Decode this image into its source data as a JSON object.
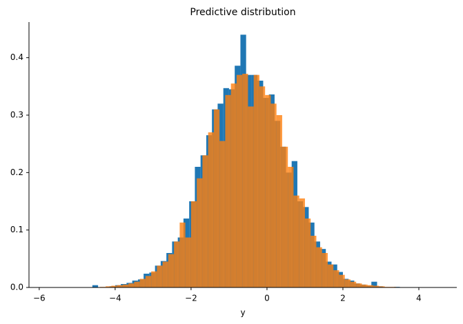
{
  "chart_data": {
    "type": "histogram",
    "title": "Predictive distribution",
    "x_label": "y",
    "xlim": [
      -6.27,
      5.0
    ],
    "ylim": [
      0,
      0.462
    ],
    "xticks": [
      {
        "value": -6,
        "label": "−6"
      },
      {
        "value": -4,
        "label": "−4"
      },
      {
        "value": -2,
        "label": "−2"
      },
      0,
      2,
      4
    ],
    "yticks": [
      {
        "value": 0,
        "label": "0.0"
      },
      0.1,
      0.2,
      0.3,
      0.4
    ],
    "series": [
      {
        "color": "#1f77b4",
        "opacity": 1,
        "bins": [
          -4.6,
          -4.45,
          -4.3,
          -4.15,
          -4.0,
          -3.85,
          -3.7,
          -3.55,
          -3.4,
          -3.25,
          -3.1,
          -2.95,
          -2.8,
          -2.65,
          -2.5,
          -2.35,
          -2.2,
          -2.05,
          -1.9,
          -1.75,
          -1.6,
          -1.45,
          -1.3,
          -1.15,
          -1.0,
          -0.85,
          -0.7,
          -0.55,
          -0.4,
          -0.25,
          -0.1,
          0.05,
          0.2,
          0.35,
          0.5,
          0.65,
          0.8,
          0.95,
          1.1,
          1.25,
          1.4,
          1.55,
          1.7,
          1.85,
          2.0,
          2.15,
          2.3,
          2.45,
          2.6,
          2.75,
          2.9,
          3.05,
          3.2,
          3.35,
          3.5
        ],
        "values": [
          0.004,
          0,
          0,
          0.002,
          0.004,
          0.006,
          0.008,
          0.012,
          0.014,
          0.024,
          0.026,
          0.038,
          0.046,
          0.06,
          0.08,
          0.087,
          0.12,
          0.15,
          0.21,
          0.23,
          0.265,
          0.31,
          0.32,
          0.347,
          0.345,
          0.386,
          0.44,
          0.37,
          0.37,
          0.36,
          0.33,
          0.336,
          0.29,
          0.245,
          0.2,
          0.22,
          0.15,
          0.14,
          0.113,
          0.08,
          0.067,
          0.045,
          0.04,
          0.027,
          0.015,
          0.012,
          0.007,
          0.005,
          0.003,
          0.01,
          0.002,
          0,
          0,
          0.001
        ]
      },
      {
        "color": "#ff7f0e",
        "opacity": 0.8,
        "bins": [
          -4.4,
          -4.25,
          -4.1,
          -3.95,
          -3.8,
          -3.65,
          -3.5,
          -3.35,
          -3.2,
          -3.05,
          -2.9,
          -2.75,
          -2.6,
          -2.45,
          -2.3,
          -2.15,
          -2.0,
          -1.85,
          -1.7,
          -1.55,
          -1.4,
          -1.25,
          -1.1,
          -0.95,
          -0.8,
          -0.65,
          -0.5,
          -0.35,
          -0.2,
          -0.05,
          0.1,
          0.25,
          0.4,
          0.55,
          0.7,
          0.85,
          1.0,
          1.15,
          1.3,
          1.45,
          1.6,
          1.75,
          1.9,
          2.05,
          2.2,
          2.35,
          2.5,
          2.65,
          2.8,
          2.95,
          3.1,
          3.25,
          3.4
        ],
        "values": [
          0.001,
          0.002,
          0.003,
          0.004,
          0.005,
          0.007,
          0.01,
          0.015,
          0.02,
          0.028,
          0.038,
          0.045,
          0.058,
          0.08,
          0.113,
          0.087,
          0.15,
          0.19,
          0.23,
          0.27,
          0.31,
          0.255,
          0.335,
          0.355,
          0.37,
          0.372,
          0.315,
          0.37,
          0.35,
          0.335,
          0.32,
          0.3,
          0.245,
          0.21,
          0.16,
          0.155,
          0.12,
          0.09,
          0.07,
          0.06,
          0.04,
          0.03,
          0.022,
          0.014,
          0.01,
          0.007,
          0.005,
          0.004,
          0.003,
          0.002,
          0.001,
          0.001
        ]
      }
    ]
  }
}
